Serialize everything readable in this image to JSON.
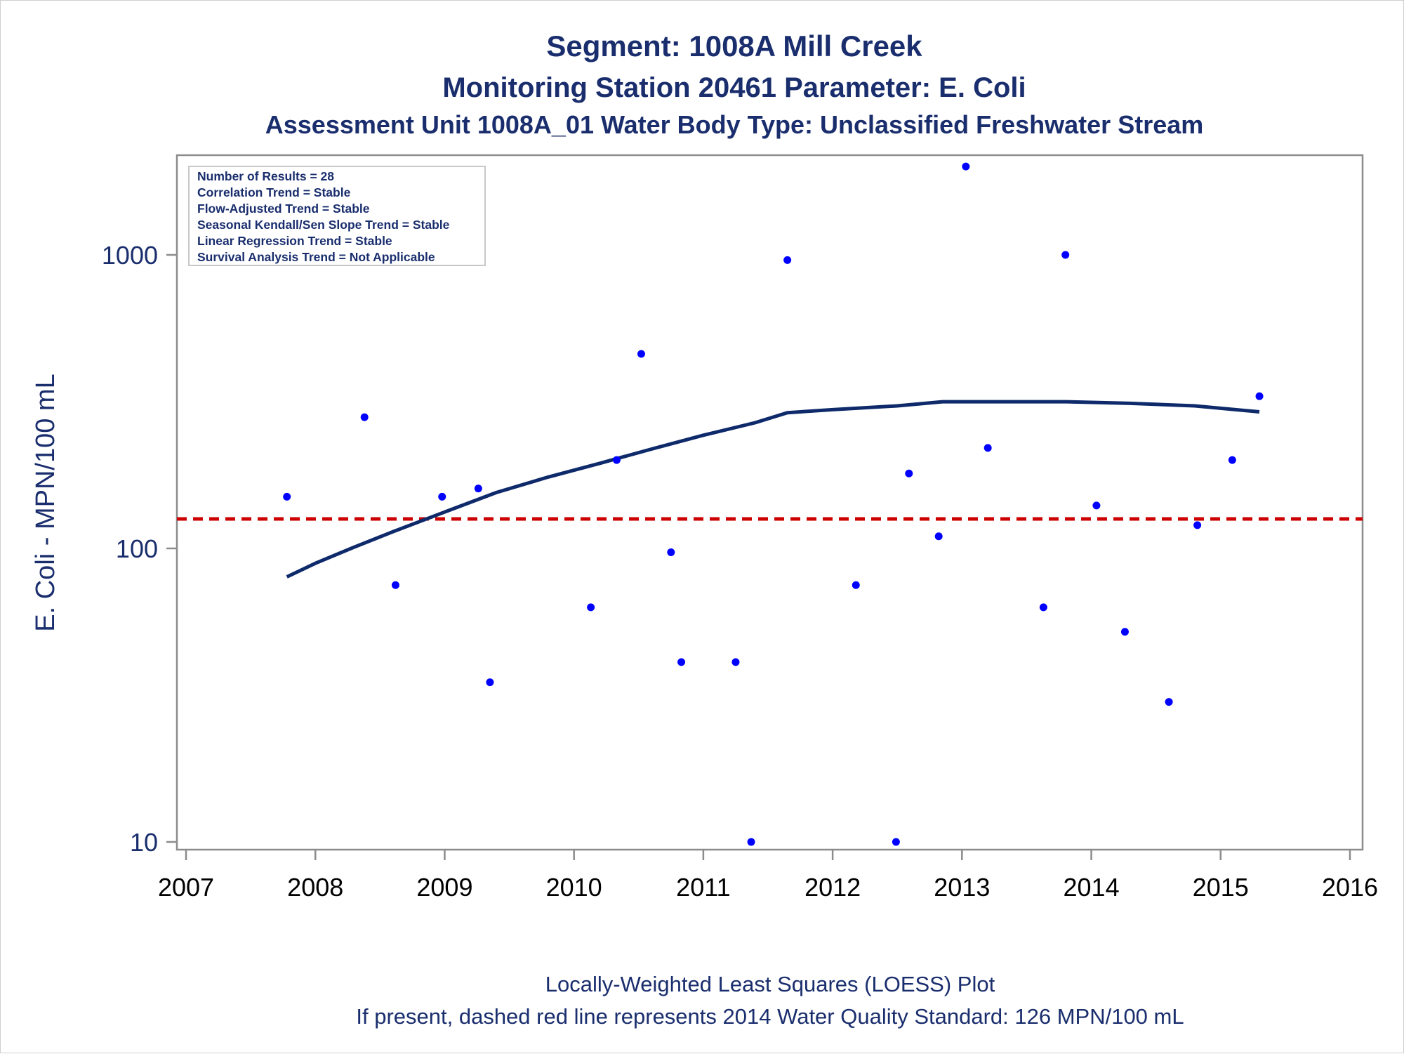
{
  "chart_data": {
    "type": "scatter",
    "title": "Segment: 1008A  Mill Creek",
    "subtitle": "Monitoring Station 20461 Parameter: E. Coli",
    "subtitle2": "Assessment Unit 1008A_01   Water Body Type: Unclassified Freshwater Stream",
    "ylabel": "E. Coli - MPN/100 mL",
    "xlabel": "",
    "x_ticks": [
      "2007",
      "2008",
      "2009",
      "2010",
      "2011",
      "2012",
      "2013",
      "2014",
      "2015",
      "2016"
    ],
    "y_ticks": [
      "10",
      "100",
      "1000"
    ],
    "y_scale": "log",
    "xlim": [
      2007,
      2016
    ],
    "ylim": [
      9,
      2300
    ],
    "grid": false,
    "stats_box": {
      "position": "top-left",
      "lines": [
        "Number of Results = 28",
        "Correlation Trend = Stable",
        "Flow-Adjusted Trend = Stable",
        "Seasonal Kendall/Sen Slope Trend = Stable",
        "Linear Regression Trend = Stable",
        "Survival Analysis Trend = Not Applicable"
      ]
    },
    "footnote_1": "Locally-Weighted Least Squares (LOESS) Plot",
    "footnote_2": "If present, dashed red line represents 2014 Water Quality Standard: 126 MPN/100 mL",
    "standard_line": {
      "value": 126,
      "color": "#cc0000"
    },
    "point_color": "#0000ff",
    "loess_color": "#0e2a6b",
    "points": [
      {
        "x": 2007.78,
        "y": 150
      },
      {
        "x": 2008.38,
        "y": 280
      },
      {
        "x": 2008.62,
        "y": 75
      },
      {
        "x": 2008.98,
        "y": 150
      },
      {
        "x": 2009.26,
        "y": 160
      },
      {
        "x": 2009.35,
        "y": 35
      },
      {
        "x": 2010.13,
        "y": 63
      },
      {
        "x": 2010.33,
        "y": 200
      },
      {
        "x": 2010.52,
        "y": 460
      },
      {
        "x": 2010.75,
        "y": 97
      },
      {
        "x": 2010.83,
        "y": 41
      },
      {
        "x": 2011.25,
        "y": 41
      },
      {
        "x": 2011.37,
        "y": 10
      },
      {
        "x": 2011.65,
        "y": 960
      },
      {
        "x": 2012.18,
        "y": 75
      },
      {
        "x": 2012.49,
        "y": 10
      },
      {
        "x": 2012.59,
        "y": 180
      },
      {
        "x": 2012.82,
        "y": 110
      },
      {
        "x": 2013.03,
        "y": 2000
      },
      {
        "x": 2013.2,
        "y": 220
      },
      {
        "x": 2013.63,
        "y": 63
      },
      {
        "x": 2013.8,
        "y": 1000
      },
      {
        "x": 2014.04,
        "y": 140
      },
      {
        "x": 2014.26,
        "y": 52
      },
      {
        "x": 2014.6,
        "y": 30
      },
      {
        "x": 2014.82,
        "y": 120
      },
      {
        "x": 2015.09,
        "y": 200
      },
      {
        "x": 2015.3,
        "y": 330
      }
    ],
    "loess": [
      {
        "x": 2007.78,
        "y": 80
      },
      {
        "x": 2008.0,
        "y": 89
      },
      {
        "x": 2008.3,
        "y": 101
      },
      {
        "x": 2008.6,
        "y": 114
      },
      {
        "x": 2009.0,
        "y": 133
      },
      {
        "x": 2009.4,
        "y": 155
      },
      {
        "x": 2009.8,
        "y": 175
      },
      {
        "x": 2010.2,
        "y": 195
      },
      {
        "x": 2010.6,
        "y": 218
      },
      {
        "x": 2011.0,
        "y": 243
      },
      {
        "x": 2011.4,
        "y": 268
      },
      {
        "x": 2011.65,
        "y": 290
      },
      {
        "x": 2012.0,
        "y": 297
      },
      {
        "x": 2012.5,
        "y": 306
      },
      {
        "x": 2012.85,
        "y": 316
      },
      {
        "x": 2013.3,
        "y": 316
      },
      {
        "x": 2013.8,
        "y": 316
      },
      {
        "x": 2014.3,
        "y": 312
      },
      {
        "x": 2014.8,
        "y": 306
      },
      {
        "x": 2015.3,
        "y": 292
      }
    ]
  }
}
